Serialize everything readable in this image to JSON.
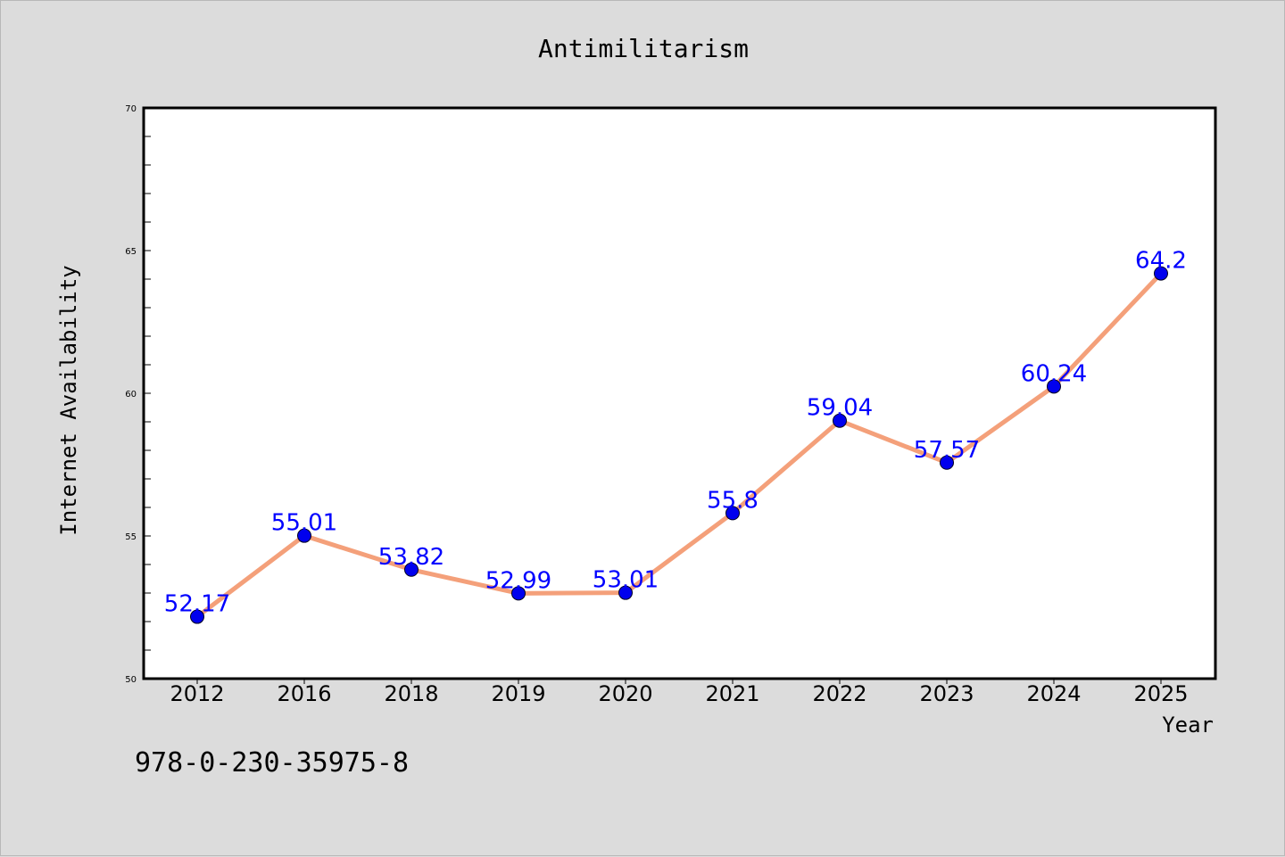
{
  "chart_data": {
    "type": "line",
    "title": "Antimilitarism",
    "xlabel": "Year",
    "ylabel": "Internet Availability",
    "categories": [
      "2012",
      "2016",
      "2018",
      "2019",
      "2020",
      "2021",
      "2022",
      "2023",
      "2024",
      "2025"
    ],
    "values": [
      52.17,
      55.01,
      53.82,
      52.99,
      53.01,
      55.8,
      59.04,
      57.57,
      60.24,
      64.2
    ],
    "data_labels": [
      "52.17",
      "55.01",
      "53.82",
      "52.99",
      "53.01",
      "55.8",
      "59.04",
      "57.57",
      "60.24",
      "64.2"
    ],
    "ylim": [
      50,
      70
    ],
    "yticks": [
      "50",
      "55",
      "60",
      "65",
      "70"
    ],
    "grid": false,
    "legend": "none",
    "line_color": "#f4a07a",
    "marker_color": "#0000ee",
    "label_color": "#0000ff"
  },
  "footer": {
    "isbn": "978-0-230-35975-8"
  }
}
